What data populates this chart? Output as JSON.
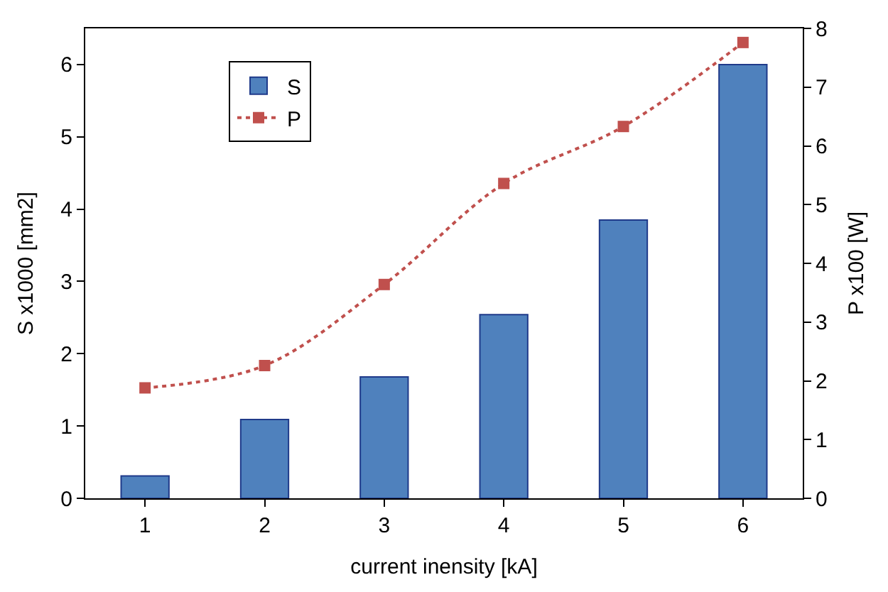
{
  "chart_data": {
    "type": "bar",
    "xlabel": "current inensity [kA]",
    "ylabel": "S x1000 [mm2]",
    "y2label": "P x100 [W]",
    "categories": [
      "1",
      "2",
      "3",
      "4",
      "5",
      "6"
    ],
    "series": [
      {
        "name": "S",
        "color": "#4f81bd",
        "values": [
          0.31,
          1.09,
          1.68,
          2.54,
          3.85,
          6.0
        ]
      },
      {
        "name": "P",
        "type": "line",
        "axis": "y2",
        "color": "#c0504d",
        "marker": "square",
        "line_style": "dotted",
        "values": [
          1.88,
          2.26,
          3.64,
          5.36,
          6.33,
          7.76
        ]
      }
    ],
    "ylim": [
      0,
      6.5
    ],
    "yticks": [
      0,
      1,
      2,
      3,
      4,
      5,
      6
    ],
    "y2lim": [
      0,
      8
    ],
    "y2ticks": [
      0,
      1,
      2,
      3,
      4,
      5,
      6,
      7,
      8
    ],
    "legend": "top left"
  }
}
